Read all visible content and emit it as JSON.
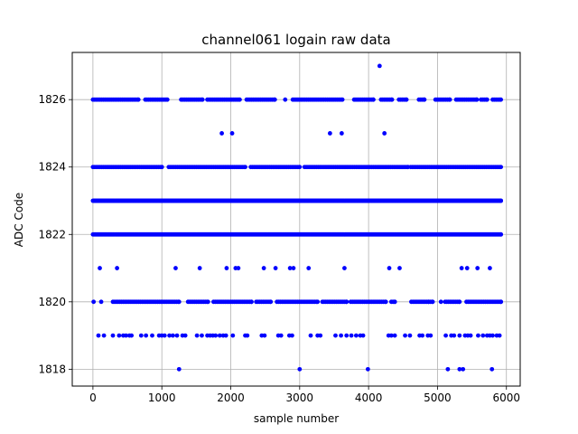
{
  "chart_data": {
    "type": "scatter",
    "title": "channel061 logain raw data",
    "xlabel": "sample number",
    "ylabel": "ADC Code",
    "xlim": [
      -300,
      6200
    ],
    "ylim": [
      1817.5,
      1827.4
    ],
    "xticks": [
      0,
      1000,
      2000,
      3000,
      4000,
      5000,
      6000
    ],
    "yticks": [
      1818,
      1820,
      1822,
      1824,
      1826
    ],
    "grid": true,
    "marker_color": "#0000ff",
    "x_range": [
      0,
      5920
    ],
    "levels": [
      {
        "y": 1822,
        "coverage": "continuous",
        "runs": [
          [
            0,
            5920
          ]
        ]
      },
      {
        "y": 1823,
        "coverage": "continuous",
        "runs": [
          [
            0,
            5920
          ]
        ]
      },
      {
        "y": 1824,
        "coverage": "dense",
        "runs": [
          [
            0,
            1000
          ],
          [
            1100,
            2210
          ],
          [
            2290,
            3000
          ],
          [
            3070,
            4570
          ],
          [
            4610,
            5920
          ]
        ]
      },
      {
        "y": 1826,
        "coverage": "dense",
        "runs": [
          [
            0,
            660
          ],
          [
            760,
            1080
          ],
          [
            1280,
            1590
          ],
          [
            1660,
            2130
          ],
          [
            2230,
            2640
          ],
          [
            2900,
            3620
          ],
          [
            3790,
            4070
          ],
          [
            4180,
            4340
          ],
          [
            4440,
            4550
          ],
          [
            4730,
            4810
          ],
          [
            4970,
            5180
          ],
          [
            5270,
            5570
          ],
          [
            5630,
            5720
          ],
          [
            5800,
            5920
          ]
        ]
      },
      {
        "y": 1820,
        "coverage": "dense",
        "runs": [
          [
            290,
            1250
          ],
          [
            1380,
            1670
          ],
          [
            1750,
            2300
          ],
          [
            2370,
            2580
          ],
          [
            2670,
            3260
          ],
          [
            3330,
            3680
          ],
          [
            3740,
            4250
          ],
          [
            4330,
            4380
          ],
          [
            4620,
            4930
          ],
          [
            5110,
            5320
          ],
          [
            5420,
            5920
          ]
        ]
      },
      {
        "y": 1819,
        "coverage": "sparse",
        "points": [
          80,
          160,
          290,
          380,
          440,
          480,
          530,
          560,
          700,
          770,
          860,
          960,
          1000,
          1040,
          1110,
          1160,
          1220,
          1300,
          1340,
          1510,
          1580,
          1660,
          1700,
          1740,
          1780,
          1840,
          1890,
          1930,
          2030,
          2210,
          2240,
          2450,
          2490,
          2690,
          2730,
          2850,
          2890,
          3160,
          3260,
          3300,
          3520,
          3600,
          3680,
          3750,
          3820,
          3880,
          3920,
          4290,
          4330,
          4380,
          4530,
          4600,
          4740,
          4780,
          4860,
          4900,
          5120,
          5200,
          5240,
          5320,
          5400,
          5440,
          5480,
          5590,
          5660,
          5720,
          5760,
          5800,
          5860,
          5900
        ]
      },
      {
        "y": 1818,
        "coverage": "sparse",
        "points": [
          1250,
          3000,
          3990,
          5150,
          5320,
          5370,
          5790
        ]
      }
    ],
    "isolated_points": [
      {
        "x": 4160,
        "y": 1827
      },
      {
        "x": 1870,
        "y": 1825
      },
      {
        "x": 2020,
        "y": 1825
      },
      {
        "x": 3440,
        "y": 1825
      },
      {
        "x": 3610,
        "y": 1825
      },
      {
        "x": 4230,
        "y": 1825
      },
      {
        "x": 100,
        "y": 1821
      },
      {
        "x": 350,
        "y": 1821
      },
      {
        "x": 1200,
        "y": 1821
      },
      {
        "x": 1550,
        "y": 1821
      },
      {
        "x": 1940,
        "y": 1821
      },
      {
        "x": 2070,
        "y": 1821
      },
      {
        "x": 2110,
        "y": 1821
      },
      {
        "x": 2480,
        "y": 1821
      },
      {
        "x": 2650,
        "y": 1821
      },
      {
        "x": 2860,
        "y": 1821
      },
      {
        "x": 2910,
        "y": 1821
      },
      {
        "x": 3130,
        "y": 1821
      },
      {
        "x": 3650,
        "y": 1821
      },
      {
        "x": 4300,
        "y": 1821
      },
      {
        "x": 4450,
        "y": 1821
      },
      {
        "x": 5350,
        "y": 1821
      },
      {
        "x": 5430,
        "y": 1821
      },
      {
        "x": 5580,
        "y": 1821
      },
      {
        "x": 5760,
        "y": 1821
      },
      {
        "x": 10,
        "y": 1820
      },
      {
        "x": 120,
        "y": 1820
      },
      {
        "x": 4870,
        "y": 1820
      },
      {
        "x": 5050,
        "y": 1820
      },
      {
        "x": 2790,
        "y": 1826
      }
    ]
  }
}
